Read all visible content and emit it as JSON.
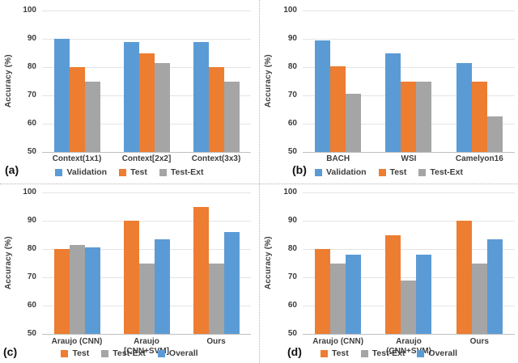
{
  "figure": {
    "background": "#ffffff",
    "divider_style": "dotted",
    "panels": [
      "(a)",
      "(b)",
      "(c)",
      "(d)"
    ]
  },
  "colors": {
    "validation_blue": "#5B9BD5",
    "test_orange": "#ED7D31",
    "testext_gray": "#A5A5A5",
    "overall_blue": "#5B9BD5",
    "gridline": "#E4E4E4",
    "axis_line": "#C0C0C0",
    "axis_text": "#3D3D3D",
    "divider_gray": "#B3B3B3"
  },
  "chart_data": [
    {
      "id": "a",
      "panel_label": "(a)",
      "type": "bar",
      "title": "",
      "ylabel": "Accuracy (%)",
      "xlabel": "",
      "ylim": [
        50,
        100
      ],
      "yticks": [
        100,
        90,
        80,
        70,
        60,
        50
      ],
      "grid": true,
      "legend_position": "bottom",
      "categories": [
        "Context(1x1)",
        "Context[2x2]",
        "Context(3x3)"
      ],
      "series": [
        {
          "name": "Validation",
          "color": "#5B9BD5",
          "values": [
            90,
            89,
            89
          ]
        },
        {
          "name": "Test",
          "color": "#ED7D31",
          "values": [
            80,
            85,
            80
          ]
        },
        {
          "name": "Test-Ext",
          "color": "#A5A5A5",
          "values": [
            75,
            81.3,
            75
          ]
        }
      ]
    },
    {
      "id": "b",
      "panel_label": "(b)",
      "type": "bar",
      "title": "",
      "ylabel": "Accuracy (%)",
      "xlabel": "",
      "ylim": [
        50,
        100
      ],
      "yticks": [
        100,
        90,
        80,
        70,
        60,
        50
      ],
      "grid": true,
      "legend_position": "bottom",
      "categories": [
        "BACH",
        "WSI",
        "Camelyon16"
      ],
      "series": [
        {
          "name": "Validation",
          "color": "#5B9BD5",
          "values": [
            89.5,
            85,
            81.4
          ]
        },
        {
          "name": "Test",
          "color": "#ED7D31",
          "values": [
            80.3,
            75,
            75
          ]
        },
        {
          "name": "Test-Ext",
          "color": "#A5A5A5",
          "values": [
            70.6,
            75,
            62.5
          ]
        }
      ]
    },
    {
      "id": "c",
      "panel_label": "(c)",
      "type": "bar",
      "title": "",
      "ylabel": "Accuracy (%)",
      "xlabel": "",
      "ylim": [
        50,
        100
      ],
      "yticks": [
        100,
        90,
        80,
        70,
        60,
        50
      ],
      "grid": true,
      "legend_position": "bottom",
      "categories": [
        "Araujo (CNN)",
        "Araujo [CNN+SVM]",
        "Ours"
      ],
      "series": [
        {
          "name": "Test",
          "color": "#ED7D31",
          "values": [
            80,
            90,
            95
          ]
        },
        {
          "name": "Test-Ext",
          "color": "#A5A5A5",
          "values": [
            81.3,
            75,
            75
          ]
        },
        {
          "name": "Overall",
          "color": "#5B9BD5",
          "values": [
            80.6,
            83.3,
            86
          ]
        }
      ]
    },
    {
      "id": "d",
      "panel_label": "(d)",
      "type": "bar",
      "title": "",
      "ylabel": "Accuracy (%)",
      "xlabel": "",
      "ylim": [
        50,
        100
      ],
      "yticks": [
        100,
        90,
        80,
        70,
        60,
        50
      ],
      "grid": true,
      "legend_position": "bottom",
      "categories": [
        "Araujo (CNN)",
        "Araujo (CNN+SVM)",
        "Ours"
      ],
      "series": [
        {
          "name": "Test",
          "color": "#ED7D31",
          "values": [
            80,
            85,
            90
          ]
        },
        {
          "name": "Test-Ext",
          "color": "#A5A5A5",
          "values": [
            75,
            69,
            75
          ]
        },
        {
          "name": "Overall",
          "color": "#5B9BD5",
          "values": [
            78,
            78,
            83.3
          ]
        }
      ]
    }
  ]
}
